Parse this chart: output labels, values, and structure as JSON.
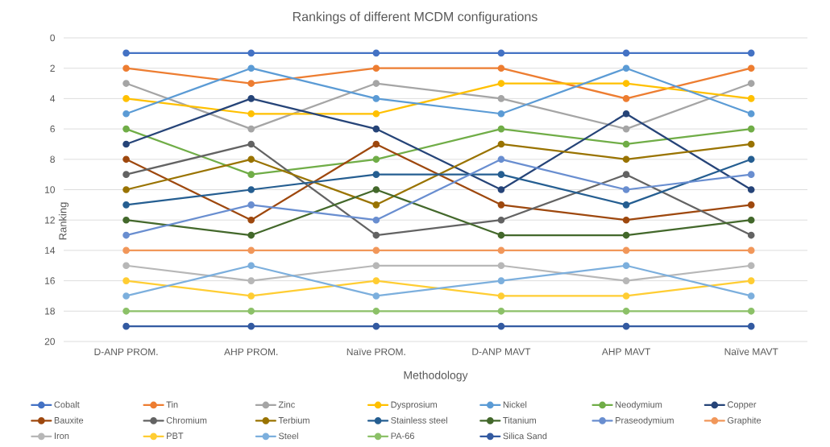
{
  "chart_data": {
    "type": "line",
    "title": "Rankings of different MCDM configurations",
    "xlabel": "Methodology",
    "ylabel": "Ranking",
    "categories": [
      "D-ANP PROM.",
      "AHP PROM.",
      "Naïve PROM.",
      "D-ANP MAVT",
      "AHP MAVT",
      "Naïve MAVT"
    ],
    "series": [
      {
        "name": "Cobalt",
        "color": "#4472c4",
        "values": [
          1,
          1,
          1,
          1,
          1,
          1
        ]
      },
      {
        "name": "Tin",
        "color": "#ed7d31",
        "values": [
          2,
          3,
          2,
          2,
          4,
          2
        ]
      },
      {
        "name": "Zinc",
        "color": "#a5a5a5",
        "values": [
          3,
          6,
          3,
          4,
          6,
          3
        ]
      },
      {
        "name": "Dysprosium",
        "color": "#ffc000",
        "values": [
          4,
          5,
          5,
          3,
          3,
          4
        ]
      },
      {
        "name": "Nickel",
        "color": "#5b9bd5",
        "values": [
          5,
          2,
          4,
          5,
          2,
          5
        ]
      },
      {
        "name": "Neodymium",
        "color": "#70ad47",
        "values": [
          6,
          9,
          8,
          6,
          7,
          6
        ]
      },
      {
        "name": "Copper",
        "color": "#264478",
        "values": [
          7,
          4,
          6,
          10,
          5,
          10
        ]
      },
      {
        "name": "Bauxite",
        "color": "#9e480e",
        "values": [
          8,
          12,
          7,
          11,
          12,
          11
        ]
      },
      {
        "name": "Chromium",
        "color": "#636363",
        "values": [
          9,
          7,
          13,
          12,
          9,
          13
        ]
      },
      {
        "name": "Terbium",
        "color": "#997300",
        "values": [
          10,
          8,
          11,
          7,
          8,
          7
        ]
      },
      {
        "name": "Stainless steel",
        "color": "#255e91",
        "values": [
          11,
          10,
          9,
          9,
          11,
          8
        ]
      },
      {
        "name": "Titanium",
        "color": "#43682b",
        "values": [
          12,
          13,
          10,
          13,
          13,
          12
        ]
      },
      {
        "name": "Praseodymium",
        "color": "#698ed0",
        "values": [
          13,
          11,
          12,
          8,
          10,
          9
        ]
      },
      {
        "name": "Graphite",
        "color": "#f1975a",
        "values": [
          14,
          14,
          14,
          14,
          14,
          14
        ]
      },
      {
        "name": "Iron",
        "color": "#b7b7b7",
        "values": [
          15,
          16,
          15,
          15,
          16,
          15
        ]
      },
      {
        "name": "PBT",
        "color": "#ffcd33",
        "values": [
          16,
          17,
          16,
          17,
          17,
          16
        ]
      },
      {
        "name": "Steel",
        "color": "#7cafdd",
        "values": [
          17,
          15,
          17,
          16,
          15,
          17
        ]
      },
      {
        "name": "PA-66",
        "color": "#8cc168",
        "values": [
          18,
          18,
          18,
          18,
          18,
          18
        ]
      },
      {
        "name": "Silica Sand",
        "color": "#335aa1",
        "values": [
          19,
          19,
          19,
          19,
          19,
          19
        ]
      }
    ],
    "ylim": [
      20,
      0
    ],
    "yticks": [
      0,
      2,
      4,
      6,
      8,
      10,
      12,
      14,
      16,
      18,
      20
    ],
    "grid": "y",
    "legend": "bottom",
    "marker": "circle",
    "line_style": "solid"
  }
}
